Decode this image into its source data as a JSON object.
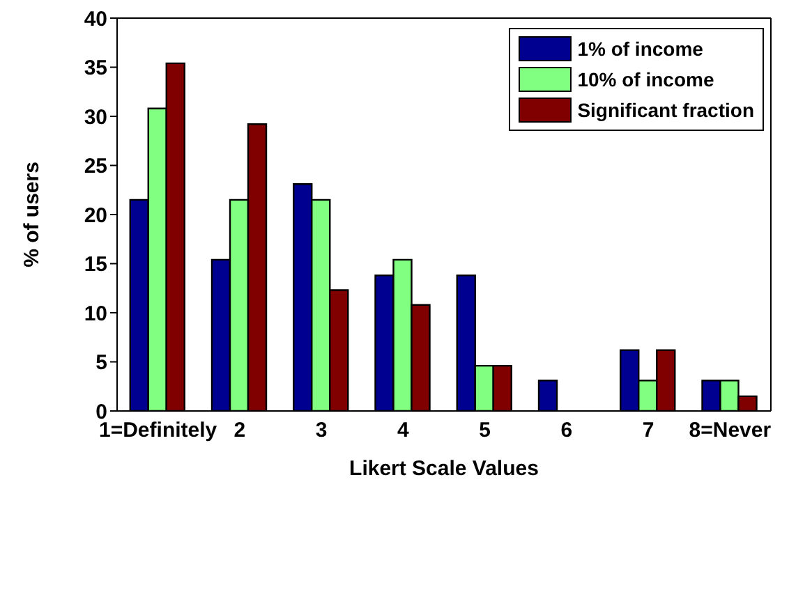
{
  "chart_data": {
    "type": "bar",
    "xlabel": "Likert Scale Values",
    "ylabel": "% of users",
    "categories": [
      "1=Definitely",
      "2",
      "3",
      "4",
      "5",
      "6",
      "7",
      "8=Never"
    ],
    "series": [
      {
        "name": "1% of income",
        "color": "#000090",
        "values": [
          21.5,
          15.4,
          23.1,
          13.8,
          13.8,
          3.1,
          6.2,
          3.1
        ]
      },
      {
        "name": "10% of income",
        "color": "#80ff80",
        "values": [
          30.8,
          21.5,
          21.5,
          15.4,
          4.6,
          0,
          3.1,
          3.1
        ]
      },
      {
        "name": "Significant fraction",
        "color": "#800000",
        "values": [
          35.4,
          29.2,
          12.3,
          10.8,
          4.6,
          0,
          6.2,
          1.5
        ]
      }
    ],
    "ylim": [
      0,
      40
    ],
    "yticks": [
      0,
      5,
      10,
      15,
      20,
      25,
      30,
      35,
      40
    ],
    "legend": "top right"
  }
}
